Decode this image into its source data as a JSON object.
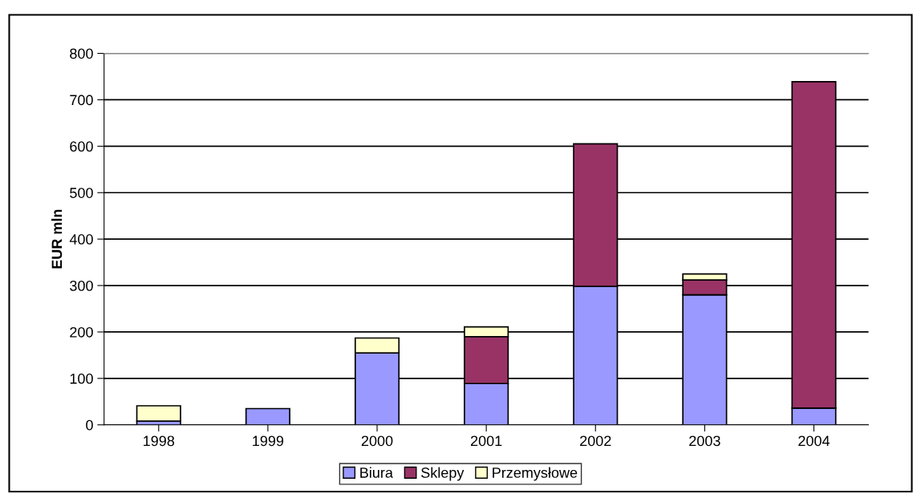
{
  "chart_data": {
    "type": "bar",
    "stacked": true,
    "ylabel": "EUR mln",
    "categories": [
      "1998",
      "1999",
      "2000",
      "2001",
      "2002",
      "2003",
      "2004"
    ],
    "series": [
      {
        "name": "Biura",
        "color": "#9999ff",
        "values": [
          8,
          35,
          155,
          89,
          298,
          280,
          36
        ]
      },
      {
        "name": "Sklepy",
        "color": "#993366",
        "values": [
          0,
          0,
          0,
          101,
          307,
          32,
          703
        ]
      },
      {
        "name": "Przemysłowe",
        "color": "#ffffcc",
        "values": [
          33,
          0,
          32,
          21,
          0,
          13,
          0
        ]
      }
    ],
    "ylim": [
      0,
      800
    ],
    "yticks": [
      0,
      100,
      200,
      300,
      400,
      500,
      600,
      700,
      800
    ],
    "grid": "y",
    "legend": "bottom"
  }
}
